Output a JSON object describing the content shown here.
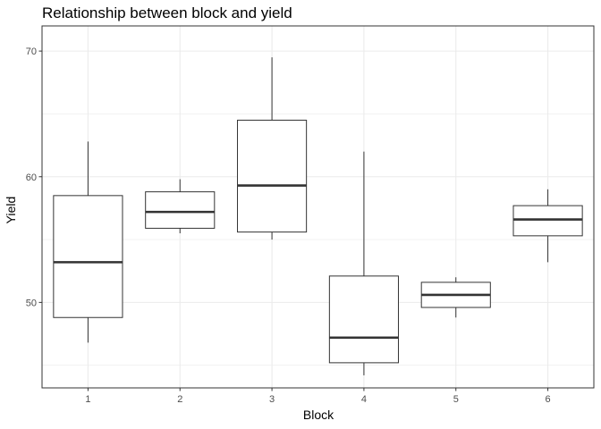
{
  "chart_data": {
    "type": "boxplot",
    "title": "Relationship between block and yield",
    "xlabel": "Block",
    "ylabel": "Yield",
    "categories": [
      "1",
      "2",
      "3",
      "4",
      "5",
      "6"
    ],
    "ylim": [
      43.2,
      72.0
    ],
    "yticks": [
      50,
      60,
      70
    ],
    "y_minor_ticks": [
      45,
      55,
      65
    ],
    "grid": true,
    "boxes": [
      {
        "category": "1",
        "whisker_low": 46.8,
        "q1": 48.8,
        "median": 53.2,
        "q3": 58.5,
        "whisker_high": 62.8
      },
      {
        "category": "2",
        "whisker_low": 55.5,
        "q1": 55.9,
        "median": 57.2,
        "q3": 58.8,
        "whisker_high": 59.8
      },
      {
        "category": "3",
        "whisker_low": 55.0,
        "q1": 55.6,
        "median": 59.3,
        "q3": 64.5,
        "whisker_high": 69.5
      },
      {
        "category": "4",
        "whisker_low": 44.2,
        "q1": 45.2,
        "median": 47.2,
        "q3": 52.1,
        "whisker_high": 62.0
      },
      {
        "category": "5",
        "whisker_low": 48.8,
        "q1": 49.6,
        "median": 50.6,
        "q3": 51.6,
        "whisker_high": 52.0
      },
      {
        "category": "6",
        "whisker_low": 53.2,
        "q1": 55.3,
        "median": 56.6,
        "q3": 57.7,
        "whisker_high": 59.0
      }
    ],
    "colors": {
      "box_fill": "#ffffff",
      "box_stroke": "#333333",
      "grid": "#ebebeb",
      "panel_border": "#333333"
    }
  }
}
